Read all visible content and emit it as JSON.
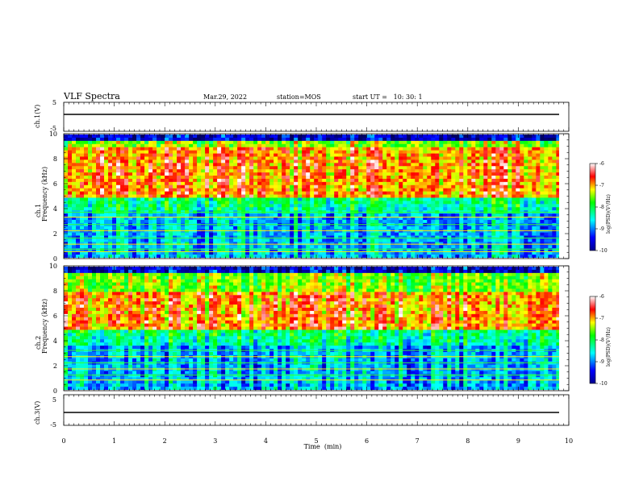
{
  "header": {
    "title": "VLF Spectra",
    "date": "Mar.29, 2022",
    "station": "station=MOS",
    "start": "start UT =   10: 30: 1"
  },
  "chart_data": [
    {
      "type": "line",
      "name": "ch1-voltage",
      "ylabel": "ch.1(V)",
      "ylim": [
        -5,
        5
      ],
      "y_ticks": [
        "5",
        "-5"
      ],
      "x": [
        0,
        10
      ],
      "values": [
        0,
        0
      ]
    },
    {
      "type": "heatmap",
      "name": "ch1-spectrogram",
      "ylabel": "ch.1\nFrequency (kHz)",
      "ylim": [
        0,
        10
      ],
      "y_ticks": [
        "0",
        "2",
        "4",
        "6",
        "8",
        "10"
      ],
      "xlim": [
        0,
        9.83
      ],
      "colorbar": {
        "label": "log(PSD)(V²/Hz)",
        "range": [
          -10,
          -6
        ],
        "ticks": [
          "-6",
          "-7",
          "-8",
          "-9",
          "-10"
        ]
      },
      "dominant_band_khz": [
        5,
        9
      ],
      "noise_lines_khz": [
        0.5,
        0.7,
        1.1,
        1.6,
        2.2,
        2.7,
        3.3,
        3.7
      ]
    },
    {
      "type": "heatmap",
      "name": "ch2-spectrogram",
      "ylabel": "ch.2\nFrequency (kHz)",
      "ylim": [
        0,
        10
      ],
      "y_ticks": [
        "0",
        "2",
        "4",
        "6",
        "8",
        "10"
      ],
      "xlim": [
        0,
        9.83
      ],
      "colorbar": {
        "label": "log(PSD)(V²/Hz)",
        "range": [
          -10,
          -6
        ],
        "ticks": [
          "-6",
          "-7",
          "-8",
          "-9",
          "-10"
        ]
      },
      "dominant_band_khz": [
        5,
        8
      ],
      "noise_lines_khz": [
        0.8,
        1.2,
        1.7,
        2.2,
        2.7,
        3.2
      ]
    },
    {
      "type": "line",
      "name": "ch3-voltage",
      "ylabel": "ch.3(V)",
      "ylim": [
        -5,
        5
      ],
      "y_ticks": [
        "5",
        "-5"
      ],
      "x": [
        0,
        10
      ],
      "values": [
        0,
        0
      ]
    }
  ],
  "xaxis": {
    "label": "Time  (min)",
    "ticks": [
      "0",
      "1",
      "2",
      "3",
      "4",
      "5",
      "6",
      "7",
      "8",
      "9",
      "10"
    ],
    "xlim": [
      0,
      10
    ]
  }
}
